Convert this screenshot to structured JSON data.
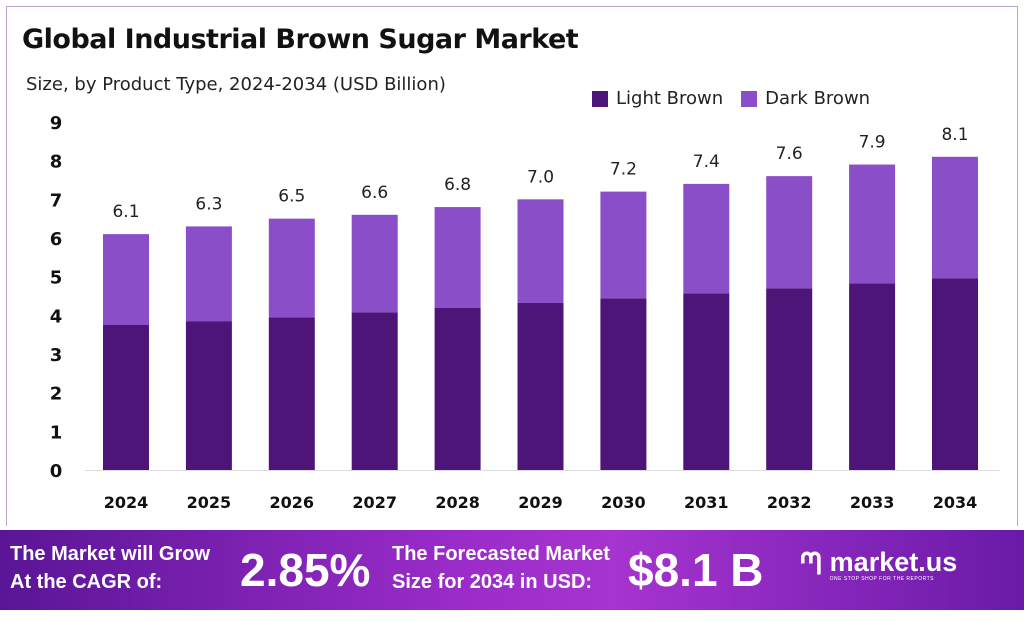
{
  "chart_data": {
    "type": "bar",
    "stacked": true,
    "title": "Global Industrial Brown Sugar Market",
    "subtitle": "Size, by Product Type, 2024-2034 (USD Billion)",
    "categories": [
      "2024",
      "2025",
      "2026",
      "2027",
      "2028",
      "2029",
      "2030",
      "2031",
      "2032",
      "2033",
      "2034"
    ],
    "series": [
      {
        "name": "Light Brown",
        "color": "#4c1577",
        "values": [
          3.75,
          3.85,
          3.95,
          4.08,
          4.19,
          4.32,
          4.44,
          4.57,
          4.7,
          4.83,
          4.96
        ]
      },
      {
        "name": "Dark Brown",
        "color": "#8b4ec9",
        "values": [
          2.35,
          2.45,
          2.55,
          2.52,
          2.61,
          2.68,
          2.76,
          2.83,
          2.9,
          3.07,
          3.14
        ]
      }
    ],
    "totals": [
      "6.1",
      "6.3",
      "6.5",
      "6.6",
      "6.8",
      "7.0",
      "7.2",
      "7.4",
      "7.6",
      "7.9",
      "8.1"
    ],
    "yticks": [
      "0",
      "1",
      "2",
      "3",
      "4",
      "5",
      "6",
      "7",
      "8",
      "9"
    ],
    "ylim": [
      0,
      9
    ],
    "grid": false,
    "legend": "top-right"
  },
  "banner": {
    "cagr_label_1": "The Market will Grow",
    "cagr_label_2": "At the CAGR of:",
    "cagr_value": "2.85%",
    "forecast_label_1": "The Forecasted Market",
    "forecast_label_2": "Size for 2034 in USD:",
    "forecast_value": "$8.1 B",
    "logo_name": "market.us",
    "logo_tagline": "ONE STOP SHOP FOR THE REPORTS"
  }
}
